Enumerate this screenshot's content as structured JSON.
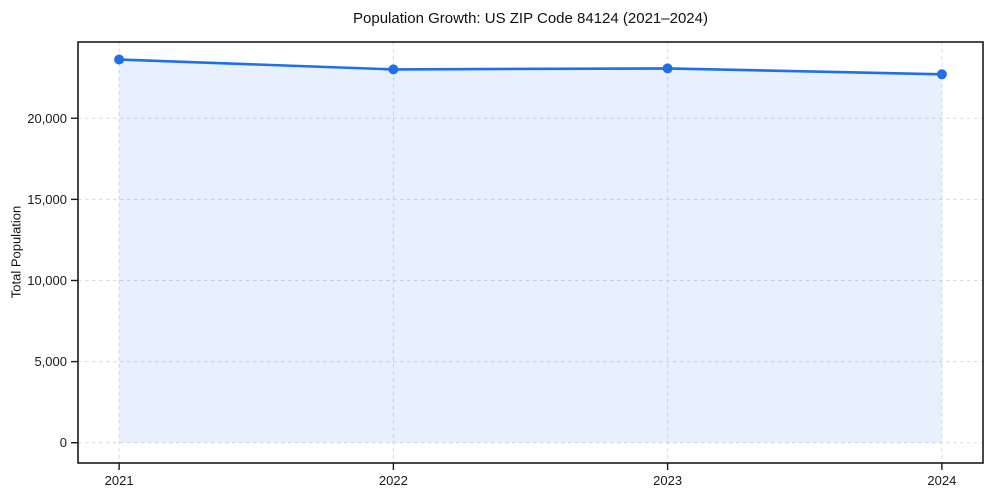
{
  "chart": {
    "title": "Population Growth: US ZIP Code 84124 (2021–2024)",
    "ylabel": "Total Population"
  },
  "chart_data": {
    "type": "area",
    "title": "Population Growth: US ZIP Code 84124 (2021–2024)",
    "xlabel": "",
    "ylabel": "Total Population",
    "x": [
      "2021",
      "2022",
      "2023",
      "2024"
    ],
    "series": [
      {
        "name": "Total Population",
        "values": [
          23620,
          23010,
          23070,
          22710
        ]
      }
    ],
    "ylim": [
      -1250,
      24700
    ],
    "ytick_values": [
      0,
      5000,
      10000,
      15000,
      20000
    ],
    "ytick_labels": [
      "0",
      "5,000",
      "10,000",
      "15,000",
      "20,000"
    ],
    "x_margin_frac": 0.05,
    "grid": true,
    "grid_style": "dashed",
    "legend": false,
    "marker": "circle",
    "colors": {
      "line": "#1f6feb",
      "marker": "#1f6feb",
      "fill": "#1f6feb",
      "fill_opacity": 0.1,
      "grid": "#d9d9d9",
      "spine": "#1a1a1a",
      "tick_label": "#1a1a1a",
      "background": "#ffffff"
    }
  }
}
